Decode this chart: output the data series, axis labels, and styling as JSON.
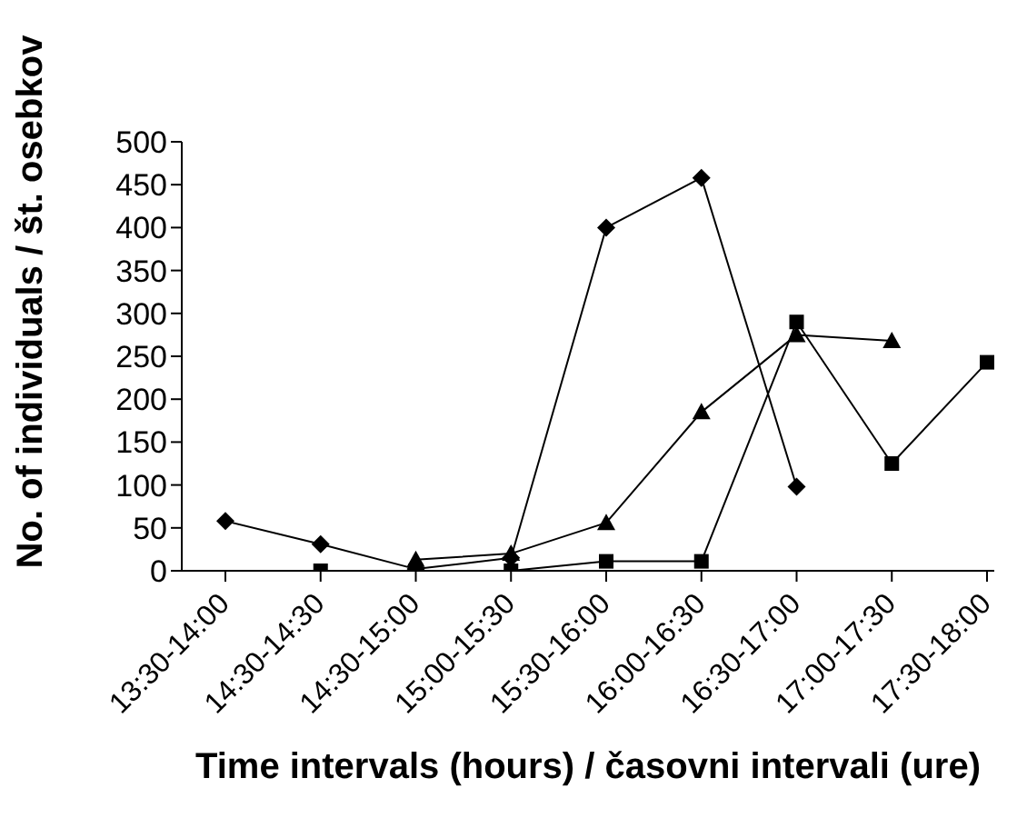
{
  "chart_data": {
    "type": "line",
    "xlabel": "Time intervals (hours) / časovni intervali (ure)",
    "ylabel": "No. of individuals / št. osebkov",
    "categories": [
      "13:30-14:00",
      "14:30-14:30",
      "14:30-15:00",
      "15:00-15:30",
      "15:30-16:00",
      "16:00-16:30",
      "16:30-17:00",
      "17:00-17:30",
      "17:30-18:00"
    ],
    "series": [
      {
        "color": "#000000",
        "marker": "diamond",
        "values": [
          58,
          31,
          2,
          15,
          400,
          458,
          98,
          null,
          null
        ]
      },
      {
        "color": "#000000",
        "marker": "triangle",
        "values": [
          null,
          null,
          13,
          20,
          56,
          185,
          275,
          268,
          null
        ]
      },
      {
        "color": "#000000",
        "marker": "square",
        "values": [
          null,
          0,
          0,
          0,
          11,
          11,
          290,
          125,
          243
        ]
      }
    ],
    "ylim": [
      0,
      500
    ],
    "yticks": [
      0,
      50,
      100,
      150,
      200,
      250,
      300,
      350,
      400,
      450,
      500
    ],
    "grid": false,
    "legend": false
  }
}
